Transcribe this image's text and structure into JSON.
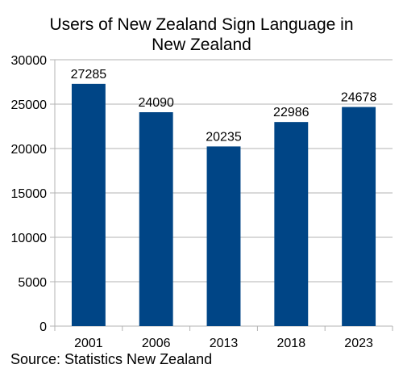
{
  "chart_data": {
    "type": "bar",
    "title_lines": [
      "Users of New Zealand Sign Language in",
      "New Zealand"
    ],
    "categories": [
      "2001",
      "2006",
      "2013",
      "2018",
      "2023"
    ],
    "values": [
      27285,
      24090,
      20235,
      22986,
      24678
    ],
    "data_labels": [
      "27285",
      "24090",
      "20235",
      "22986",
      "24678"
    ],
    "yticks": [
      0,
      5000,
      10000,
      15000,
      20000,
      25000,
      30000
    ],
    "ylim": [
      0,
      30000
    ],
    "grid": true,
    "bar_color": "#004586",
    "xlabel": "",
    "ylabel": ""
  },
  "source": "Source: Statistics New Zealand"
}
